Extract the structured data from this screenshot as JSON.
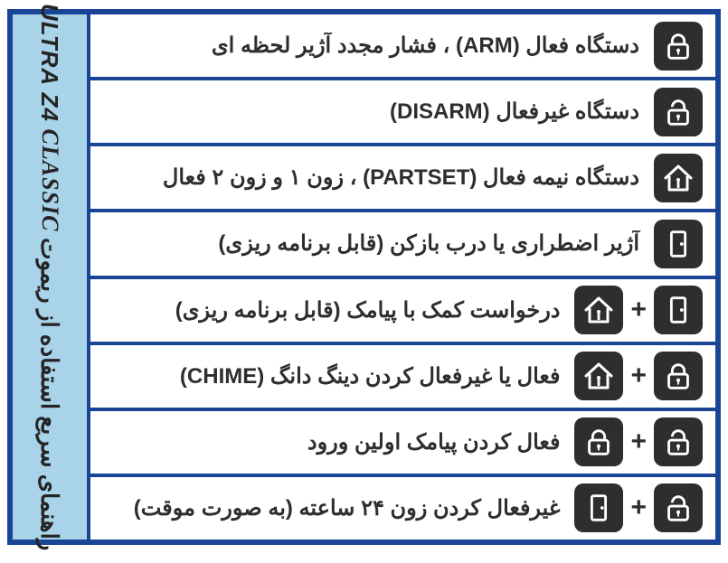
{
  "colors": {
    "frame_border": "#1a4596",
    "sidebar_bg": "#a9d3e8",
    "row_bg": "#ffffff",
    "icon_bg": "#2e2e2e",
    "icon_fg": "#ffffff",
    "text": "#2e2e2e",
    "plus": "#2e2e2e"
  },
  "sidebar": {
    "brand_classic": "CLASSIC",
    "brand_model": "Z4",
    "brand_ultra": "ULTRA",
    "title_fa": "راهنمای سریع استفاده از ریموت"
  },
  "rows": [
    {
      "icons": [
        "lock-closed"
      ],
      "label": "دستگاه فعال (ARM) ، فشار مجدد آژیر لحظه ای"
    },
    {
      "icons": [
        "lock-open"
      ],
      "label": "دستگاه غیرفعال (DISARM)"
    },
    {
      "icons": [
        "house"
      ],
      "label": "دستگاه نیمه فعال (PARTSET) ، زون ۱ و زون ۲ فعال"
    },
    {
      "icons": [
        "door"
      ],
      "label": "آژیر اضطراری یا درب بازکن (قابل برنامه ریزی)"
    },
    {
      "icons": [
        "door",
        "house"
      ],
      "label": "درخواست کمک با پیامک (قابل برنامه ریزی)"
    },
    {
      "icons": [
        "lock-closed",
        "house"
      ],
      "label": "فعال یا غیرفعال کردن دینگ دانگ (CHIME)"
    },
    {
      "icons": [
        "lock-open",
        "lock-closed"
      ],
      "label": "فعال کردن پیامک اولین ورود"
    },
    {
      "icons": [
        "lock-open",
        "door"
      ],
      "label": "غیرفعال کردن زون ۲۴ ساعته (به صورت موقت)"
    }
  ]
}
